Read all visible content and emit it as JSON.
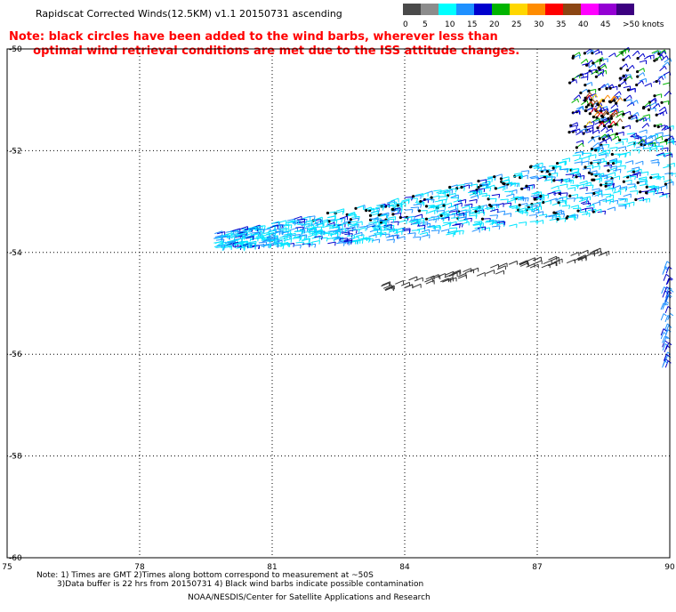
{
  "title": "Rapidscat Corrected Winds(12.5KM) v1.1 20150731 ascending",
  "note_line1": "Note: black circles have been added to the wind barbs, wherever less than",
  "note_line2": "optimal wind retrieval conditions are met due to the ISS attitude changes.",
  "legend": {
    "labels": [
      "0",
      "5",
      "10",
      "15",
      "20",
      "25",
      "30",
      "35",
      "40",
      "45",
      ">50 knots"
    ],
    "colors": [
      "#4a4a4a",
      "#8c8c8c",
      "#00ffff",
      "#1e90ff",
      "#0000cd",
      "#00b400",
      "#ffd700",
      "#ff8c00",
      "#ff0000",
      "#8b4513",
      "#ff00ff",
      "#9400d3",
      "#3c0080"
    ]
  },
  "axes": {
    "x_ticks": [
      "75",
      "78",
      "81",
      "84",
      "87",
      "90"
    ],
    "y_ticks": [
      "-50",
      "-52",
      "-54",
      "-56",
      "-58",
      "-60"
    ],
    "x_range": [
      75,
      90
    ],
    "y_range": [
      -60,
      -50
    ]
  },
  "footer": {
    "line1": "Note: 1) Times are GMT 2)Times along bottom correspond to measurement at ~50S",
    "line2": "3)Data buffer is 22 hrs from 20150731 4) Black wind barbs indicate possible contamination",
    "line3": "NOAA/NESDIS/Center for Satellite Applications and Research"
  }
}
